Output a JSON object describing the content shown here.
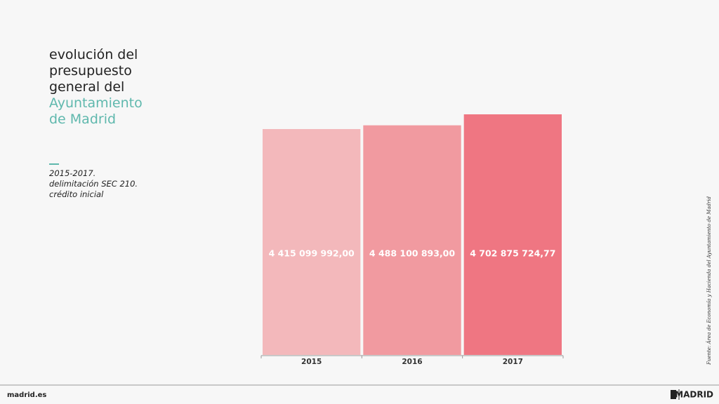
{
  "chart_data": {
    "type": "bar",
    "title": "evolución del presupuesto general del",
    "title_highlight": "Ayuntamiento de Madrid",
    "subtitle": [
      "2015-2017.",
      "delimitación SEC 210. crédito inicial"
    ],
    "categories": [
      "2015",
      "2016",
      "2017"
    ],
    "values": [
      4415099992.0,
      4488100893.0,
      4702875724.77
    ],
    "value_labels": [
      "4 415 099 992,00",
      "4 488 100 893,00",
      "4 702 875 724,77"
    ],
    "colors": [
      "#f3b8bb",
      "#f19aa0",
      "#ef7682"
    ],
    "source": "Fuente: Área de Economía y Hacienda del Ayuntamiento de Madrid"
  },
  "footer": {
    "site": "madrid.es",
    "brand": "MADRID"
  }
}
